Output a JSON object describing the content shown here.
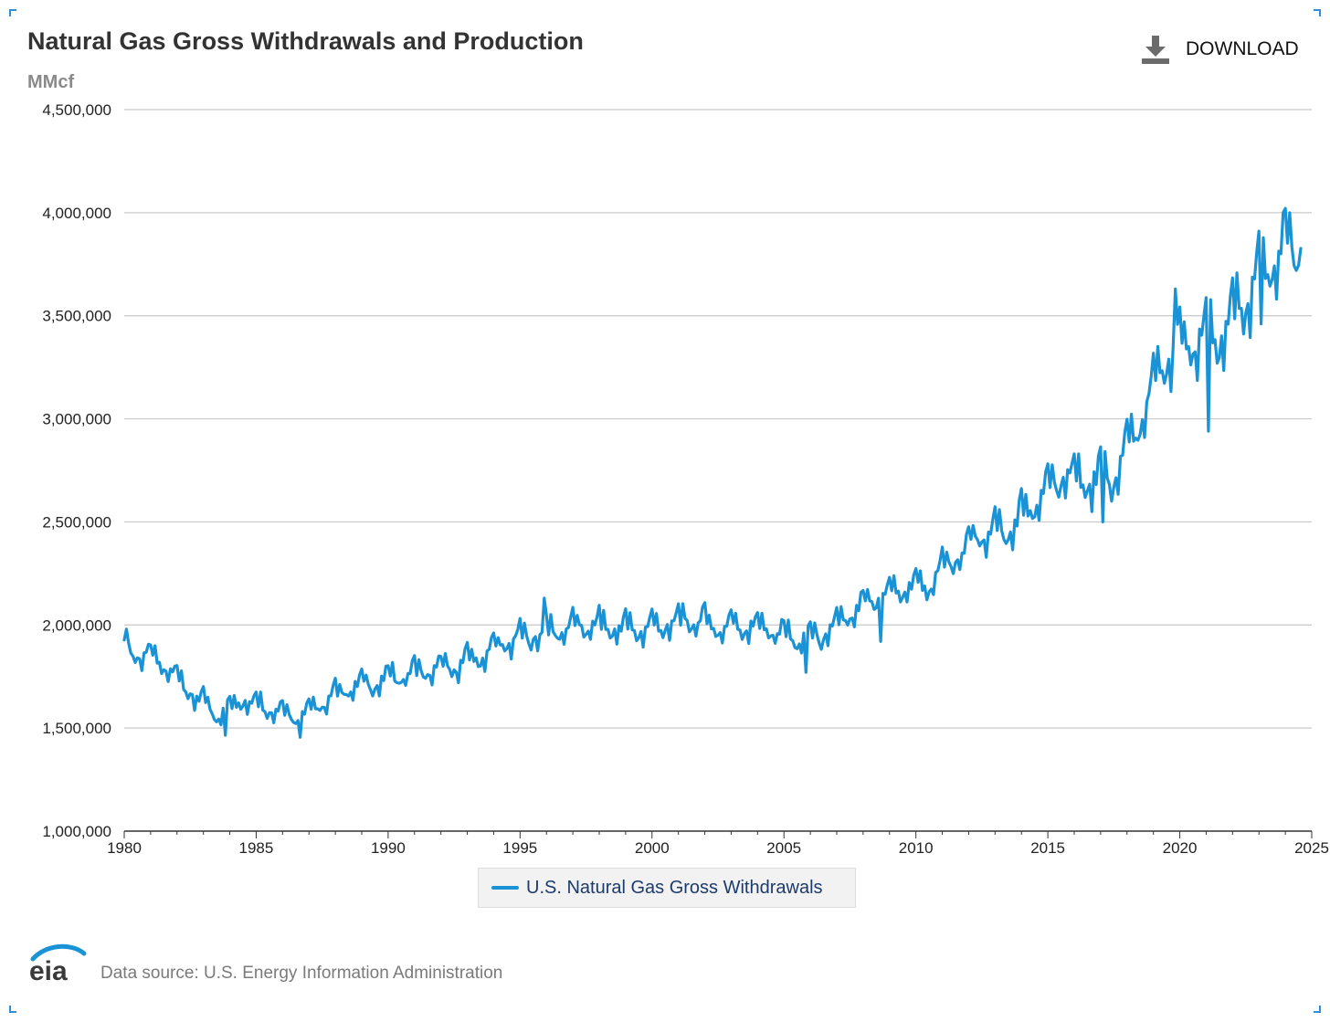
{
  "header": {
    "title": "Natural Gas Gross Withdrawals and Production",
    "download_label": "DOWNLOAD"
  },
  "footer": {
    "logo_text": "eia",
    "source": "Data source: U.S. Energy Information Administration"
  },
  "colors": {
    "series": "#1a93d6",
    "gridline": "#c8c8c8",
    "axis": "#333333"
  },
  "chart_data": {
    "type": "line",
    "title": "Natural Gas Gross Withdrawals and Production",
    "ylabel": "MMcf",
    "xlabel": "",
    "xlim": [
      1980,
      2025
    ],
    "ylim": [
      1000000,
      4500000
    ],
    "yticks": [
      1000000,
      1500000,
      2000000,
      2500000,
      3000000,
      3500000,
      4000000,
      4500000
    ],
    "ytick_labels": [
      "1,000,000",
      "1,500,000",
      "2,000,000",
      "2,500,000",
      "3,000,000",
      "3,500,000",
      "4,000,000",
      "4,500,000"
    ],
    "xticks": [
      1980,
      1985,
      1990,
      1995,
      2000,
      2005,
      2010,
      2015,
      2020,
      2025
    ],
    "xtick_labels": [
      "1980",
      "1985",
      "1990",
      "1995",
      "2000",
      "2005",
      "2010",
      "2015",
      "2020",
      "2025"
    ],
    "grid": true,
    "legend_position": "bottom-center",
    "series": [
      {
        "name": "U.S. Natural Gas Gross Withdrawals",
        "color": "#1a93d6",
        "frequency": "monthly",
        "start": "1980-01",
        "end": "2024-08",
        "annual_avg": [
          [
            1980,
            1870000
          ],
          [
            1981,
            1810000
          ],
          [
            1982,
            1680000
          ],
          [
            1983,
            1560000
          ],
          [
            1984,
            1640000
          ],
          [
            1985,
            1600000
          ],
          [
            1986,
            1560000
          ],
          [
            1987,
            1620000
          ],
          [
            1988,
            1700000
          ],
          [
            1989,
            1720000
          ],
          [
            1990,
            1760000
          ],
          [
            1991,
            1780000
          ],
          [
            1992,
            1800000
          ],
          [
            1993,
            1850000
          ],
          [
            1994,
            1920000
          ],
          [
            1995,
            1950000
          ],
          [
            1996,
            1980000
          ],
          [
            1997,
            2000000
          ],
          [
            1998,
            1990000
          ],
          [
            1999,
            1980000
          ],
          [
            2000,
            2000000
          ],
          [
            2001,
            2030000
          ],
          [
            2002,
            1990000
          ],
          [
            2003,
            2000000
          ],
          [
            2004,
            1980000
          ],
          [
            2005,
            1930000
          ],
          [
            2006,
            1950000
          ],
          [
            2007,
            2050000
          ],
          [
            2008,
            2130000
          ],
          [
            2009,
            2180000
          ],
          [
            2010,
            2200000
          ],
          [
            2011,
            2330000
          ],
          [
            2012,
            2450000
          ],
          [
            2013,
            2460000
          ],
          [
            2014,
            2590000
          ],
          [
            2015,
            2730000
          ],
          [
            2016,
            2700000
          ],
          [
            2017,
            2720000
          ],
          [
            2018,
            3000000
          ],
          [
            2019,
            3300000
          ],
          [
            2020,
            3380000
          ],
          [
            2021,
            3400000
          ],
          [
            2022,
            3580000
          ],
          [
            2023,
            3790000
          ],
          [
            2024,
            3840000
          ],
          [
            2024.6,
            3870000
          ]
        ],
        "notable_points": [
          [
            1980.1,
            1980000
          ],
          [
            1983.8,
            1465000
          ],
          [
            1986.7,
            1455000
          ],
          [
            1995.9,
            2130000
          ],
          [
            2005.8,
            1770000
          ],
          [
            2008.7,
            1920000
          ],
          [
            2017.1,
            2500000
          ],
          [
            2019.8,
            3630000
          ],
          [
            2021.1,
            2940000
          ],
          [
            2023.1,
            3460000
          ],
          [
            2023.9,
            4000000
          ],
          [
            2024.4,
            3720000
          ]
        ]
      }
    ]
  }
}
